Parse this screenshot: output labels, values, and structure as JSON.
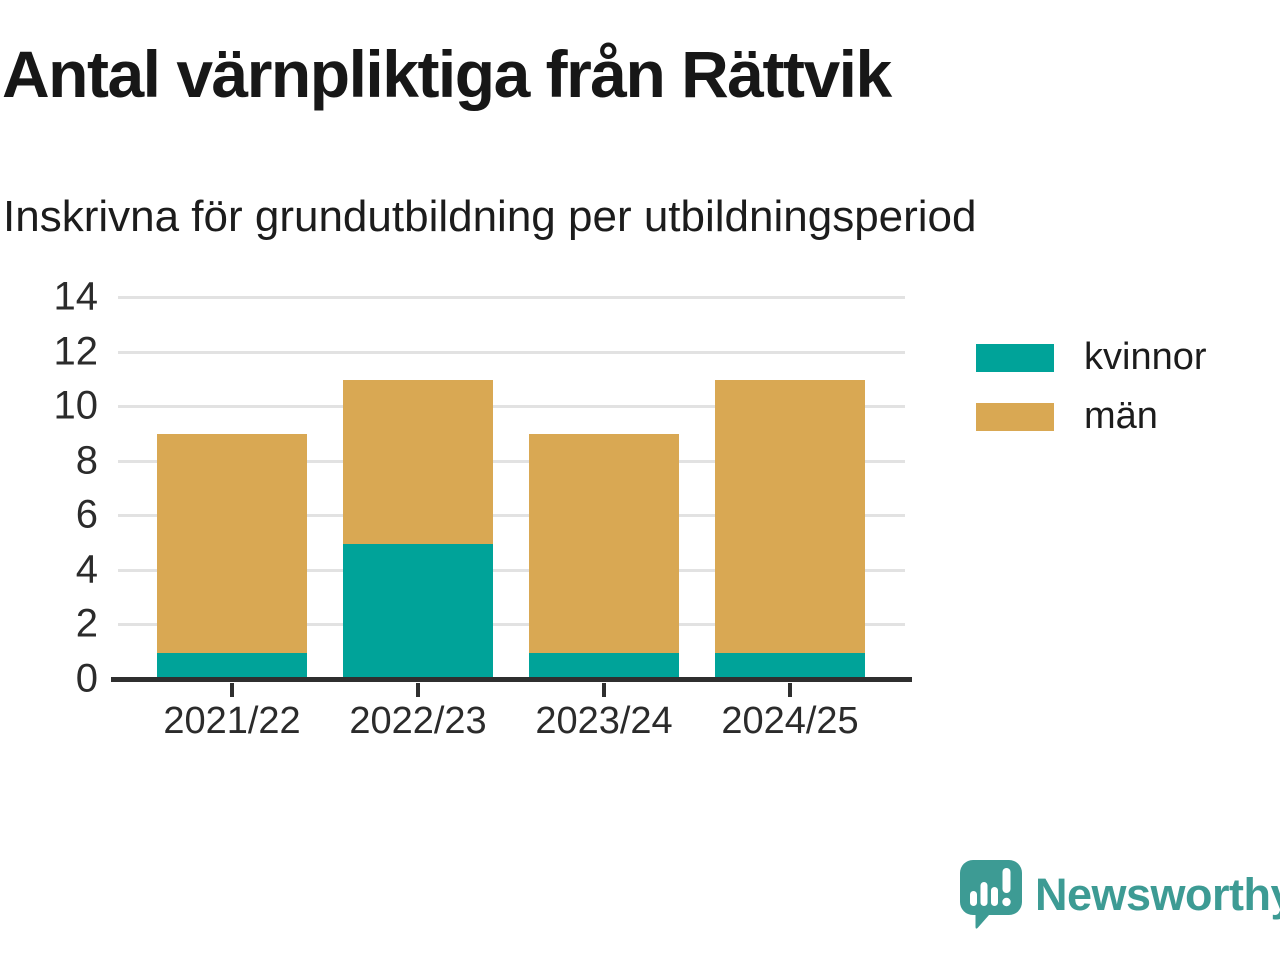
{
  "header": {
    "title": "Antal värnpliktiga från Rättvik",
    "subtitle": "Inskrivna för grundutbildning per utbildningsperiod"
  },
  "chart_data": {
    "type": "bar",
    "stacked": true,
    "title": "Antal värnpliktiga från Rättvik",
    "subtitle": "Inskrivna för grundutbildning per utbildningsperiod",
    "categories": [
      "2021/22",
      "2022/23",
      "2023/24",
      "2024/25"
    ],
    "series": [
      {
        "name": "kvinnor",
        "color": "#00a399",
        "values": [
          1,
          5,
          1,
          1
        ]
      },
      {
        "name": "män",
        "color": "#d9a853",
        "values": [
          8,
          6,
          8,
          10
        ]
      }
    ],
    "stack_totals": [
      9,
      11,
      9,
      11
    ],
    "xlabel": "",
    "ylabel": "",
    "ylim": [
      0,
      14
    ],
    "yticks": [
      0,
      2,
      4,
      6,
      8,
      10,
      12,
      14
    ],
    "grid": "horizontal",
    "legend_position": "right"
  },
  "brand": {
    "name": "Newsworthy",
    "color": "#3d9b94"
  },
  "colors": {
    "axis": "#2f2f2f",
    "gridline": "#e2e2e2",
    "title_text": "#171717",
    "tick_label": "#2b2b2b",
    "kvinnor": "#00a399",
    "man": "#d9a853"
  }
}
